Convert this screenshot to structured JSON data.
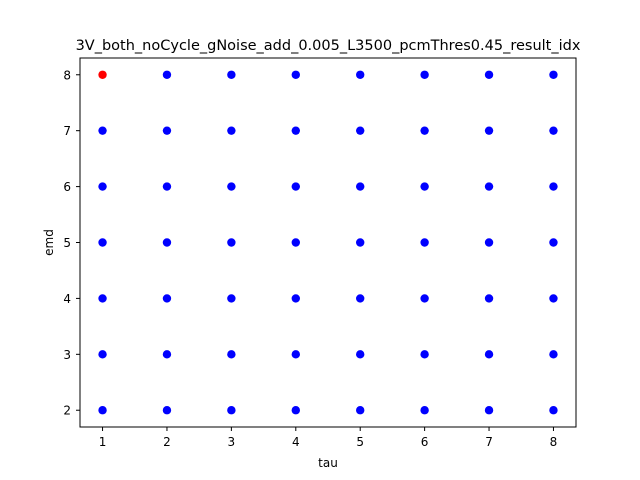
{
  "chart_data": {
    "type": "scatter",
    "title": "3V_both_noCycle_gNoise_add_0.005_L3500_pcmThres0.45_result_idx",
    "xlabel": "tau",
    "ylabel": "emd",
    "xlim": [
      0.65,
      8.35
    ],
    "ylim": [
      1.7,
      8.3
    ],
    "xticks": [
      1,
      2,
      3,
      4,
      5,
      6,
      7,
      8
    ],
    "yticks": [
      2,
      3,
      4,
      5,
      6,
      7,
      8
    ],
    "grid": false,
    "default_color": "#0000ff",
    "highlight_color": "#ff0000",
    "points": [
      {
        "x": 1,
        "y": 2,
        "color": "#0000ff"
      },
      {
        "x": 1,
        "y": 3,
        "color": "#0000ff"
      },
      {
        "x": 1,
        "y": 4,
        "color": "#0000ff"
      },
      {
        "x": 1,
        "y": 5,
        "color": "#0000ff"
      },
      {
        "x": 1,
        "y": 6,
        "color": "#0000ff"
      },
      {
        "x": 1,
        "y": 7,
        "color": "#0000ff"
      },
      {
        "x": 1,
        "y": 8,
        "color": "#ff0000"
      },
      {
        "x": 2,
        "y": 2,
        "color": "#0000ff"
      },
      {
        "x": 2,
        "y": 3,
        "color": "#0000ff"
      },
      {
        "x": 2,
        "y": 4,
        "color": "#0000ff"
      },
      {
        "x": 2,
        "y": 5,
        "color": "#0000ff"
      },
      {
        "x": 2,
        "y": 6,
        "color": "#0000ff"
      },
      {
        "x": 2,
        "y": 7,
        "color": "#0000ff"
      },
      {
        "x": 2,
        "y": 8,
        "color": "#0000ff"
      },
      {
        "x": 3,
        "y": 2,
        "color": "#0000ff"
      },
      {
        "x": 3,
        "y": 3,
        "color": "#0000ff"
      },
      {
        "x": 3,
        "y": 4,
        "color": "#0000ff"
      },
      {
        "x": 3,
        "y": 5,
        "color": "#0000ff"
      },
      {
        "x": 3,
        "y": 6,
        "color": "#0000ff"
      },
      {
        "x": 3,
        "y": 7,
        "color": "#0000ff"
      },
      {
        "x": 3,
        "y": 8,
        "color": "#0000ff"
      },
      {
        "x": 4,
        "y": 2,
        "color": "#0000ff"
      },
      {
        "x": 4,
        "y": 3,
        "color": "#0000ff"
      },
      {
        "x": 4,
        "y": 4,
        "color": "#0000ff"
      },
      {
        "x": 4,
        "y": 5,
        "color": "#0000ff"
      },
      {
        "x": 4,
        "y": 6,
        "color": "#0000ff"
      },
      {
        "x": 4,
        "y": 7,
        "color": "#0000ff"
      },
      {
        "x": 4,
        "y": 8,
        "color": "#0000ff"
      },
      {
        "x": 5,
        "y": 2,
        "color": "#0000ff"
      },
      {
        "x": 5,
        "y": 3,
        "color": "#0000ff"
      },
      {
        "x": 5,
        "y": 4,
        "color": "#0000ff"
      },
      {
        "x": 5,
        "y": 5,
        "color": "#0000ff"
      },
      {
        "x": 5,
        "y": 6,
        "color": "#0000ff"
      },
      {
        "x": 5,
        "y": 7,
        "color": "#0000ff"
      },
      {
        "x": 5,
        "y": 8,
        "color": "#0000ff"
      },
      {
        "x": 6,
        "y": 2,
        "color": "#0000ff"
      },
      {
        "x": 6,
        "y": 3,
        "color": "#0000ff"
      },
      {
        "x": 6,
        "y": 4,
        "color": "#0000ff"
      },
      {
        "x": 6,
        "y": 5,
        "color": "#0000ff"
      },
      {
        "x": 6,
        "y": 6,
        "color": "#0000ff"
      },
      {
        "x": 6,
        "y": 7,
        "color": "#0000ff"
      },
      {
        "x": 6,
        "y": 8,
        "color": "#0000ff"
      },
      {
        "x": 7,
        "y": 2,
        "color": "#0000ff"
      },
      {
        "x": 7,
        "y": 3,
        "color": "#0000ff"
      },
      {
        "x": 7,
        "y": 4,
        "color": "#0000ff"
      },
      {
        "x": 7,
        "y": 5,
        "color": "#0000ff"
      },
      {
        "x": 7,
        "y": 6,
        "color": "#0000ff"
      },
      {
        "x": 7,
        "y": 7,
        "color": "#0000ff"
      },
      {
        "x": 7,
        "y": 8,
        "color": "#0000ff"
      },
      {
        "x": 8,
        "y": 2,
        "color": "#0000ff"
      },
      {
        "x": 8,
        "y": 3,
        "color": "#0000ff"
      },
      {
        "x": 8,
        "y": 4,
        "color": "#0000ff"
      },
      {
        "x": 8,
        "y": 5,
        "color": "#0000ff"
      },
      {
        "x": 8,
        "y": 6,
        "color": "#0000ff"
      },
      {
        "x": 8,
        "y": 7,
        "color": "#0000ff"
      },
      {
        "x": 8,
        "y": 8,
        "color": "#0000ff"
      }
    ]
  }
}
